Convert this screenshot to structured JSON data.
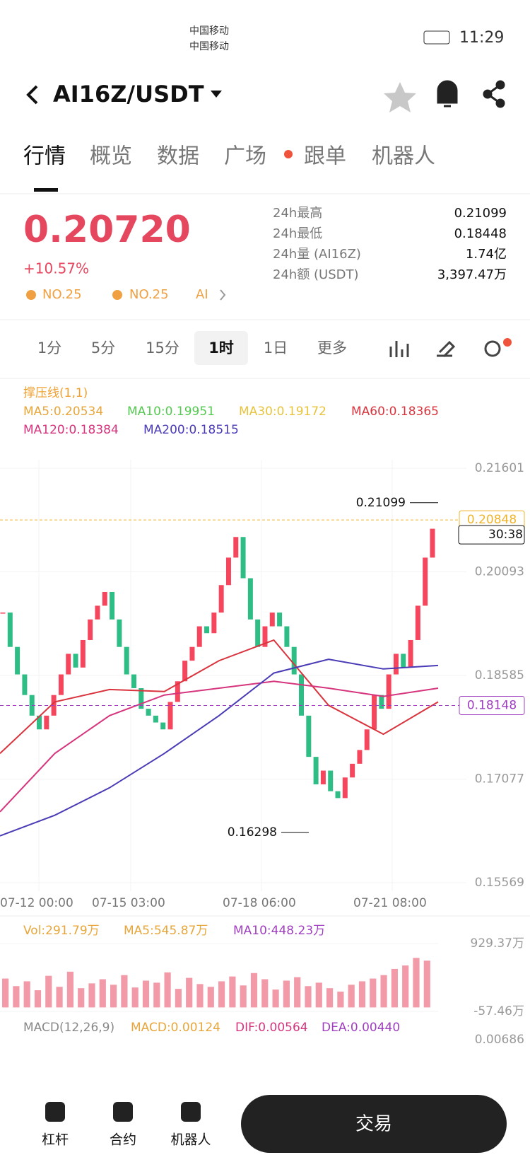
{
  "status_bar": {
    "carrier1": "中国移动",
    "carrier2": "中国移动",
    "time": "11:29"
  },
  "header": {
    "title": "AI16Z/USDT"
  },
  "tabs": [
    "行情",
    "概览",
    "数据",
    "广场",
    "跟单",
    "机器人"
  ],
  "ticker": {
    "price": "0.20720",
    "change": "+10.57%",
    "rank1": "NO.25",
    "rank2": "NO.25",
    "tag": "AI"
  },
  "stats": [
    {
      "label": "24h最高",
      "value": "0.21099"
    },
    {
      "label": "24h最低",
      "value": "0.18448"
    },
    {
      "label": "24h量 (AI16Z)",
      "value": "1.74亿"
    },
    {
      "label": "24h额 (USDT)",
      "value": "3,397.47万"
    }
  ],
  "intervals": {
    "items": [
      "1分",
      "5分",
      "15分",
      "1时",
      "1日",
      "更多"
    ],
    "selected": 3
  },
  "chart_data": {
    "type": "candlestick",
    "legend": {
      "sr": "撑压线(1,1)",
      "ma5": "MA5:0.20534",
      "ma10": "MA10:0.19951",
      "ma30": "MA30:0.19172",
      "ma60": "MA60:0.18365",
      "ma120": "MA120:0.18384",
      "ma200": "MA200:0.18515"
    },
    "closes": [
      0.195,
      0.19,
      0.186,
      0.183,
      0.18,
      0.178,
      0.18,
      0.183,
      0.186,
      0.189,
      0.187,
      0.191,
      0.194,
      0.196,
      0.198,
      0.194,
      0.19,
      0.186,
      0.184,
      0.181,
      0.18,
      0.179,
      0.178,
      0.182,
      0.185,
      0.188,
      0.19,
      0.193,
      0.192,
      0.195,
      0.199,
      0.203,
      0.206,
      0.2,
      0.194,
      0.19,
      0.193,
      0.195,
      0.193,
      0.19,
      0.186,
      0.18,
      0.174,
      0.17,
      0.172,
      0.169,
      0.168,
      0.171,
      0.173,
      0.175,
      0.178,
      0.183,
      0.181,
      0.186,
      0.189,
      0.187,
      0.191,
      0.196,
      0.203,
      0.2072
    ],
    "up_color": "#f6465d",
    "down_color": "#2ebd85",
    "lines": [
      {
        "color": "#d9343d",
        "values": [
          0.1745,
          0.182,
          0.1838,
          0.1835,
          0.188,
          0.191,
          0.1815,
          0.1773,
          0.182
        ]
      },
      {
        "color": "#d6357e",
        "values": [
          0.166,
          0.1745,
          0.18,
          0.183,
          0.184,
          0.185,
          0.184,
          0.1828,
          0.184
        ]
      },
      {
        "color": "#4a3bb6",
        "values": [
          0.1625,
          0.1655,
          0.1695,
          0.1745,
          0.18,
          0.1862,
          0.1882,
          0.1868,
          0.1873
        ]
      }
    ],
    "ylim": [
      0.15569,
      0.21601
    ],
    "yticks": [
      0.21601,
      0.20093,
      0.18585,
      0.17077,
      0.15569
    ],
    "xtick_labels": [
      "07-12 00:00",
      "07-15 03:00",
      "07-18 06:00",
      "07-21 08:00"
    ],
    "high": 0.21099,
    "low": 0.16298,
    "last": 0.20848,
    "countdown": "30:38",
    "support": 0.18148,
    "volume": {
      "legend": [
        "Vol:291.79万",
        "MA5:545.87万",
        "MA10:448.23万"
      ],
      "color": "#f29aa8",
      "values": [
        420,
        310,
        380,
        250,
        460,
        300,
        520,
        280,
        350,
        410,
        330,
        470,
        290,
        390,
        360,
        510,
        270,
        430,
        340,
        300,
        380,
        450,
        320,
        500,
        410,
        260,
        390,
        440,
        310,
        360,
        280,
        230,
        330,
        380,
        420,
        470,
        560,
        610,
        720,
        680
      ],
      "ylim": [
        -57.46,
        929.37
      ],
      "yticks": [
        {
          "value": 929.37,
          "label": "929.37万"
        },
        {
          "value": -57.46,
          "label": "-57.46万"
        }
      ]
    },
    "macd": {
      "legend": [
        "MACD(12,26,9)",
        "MACD:0.00124",
        "DIF:0.00564",
        "DEA:0.00440"
      ],
      "tick": 0.00686
    }
  },
  "bottom_bar": {
    "items": [
      "杠杆",
      "合约",
      "机器人"
    ],
    "button": "交易"
  }
}
